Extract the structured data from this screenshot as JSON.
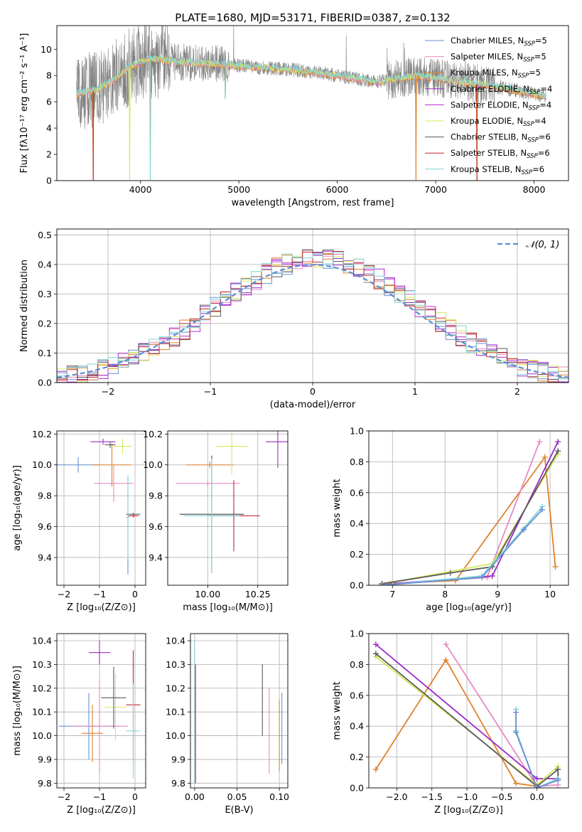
{
  "colors": {
    "chabrier_miles": "#6a8fd4",
    "salpeter_miles": "#e78ac3",
    "kroupa_miles": "#e0822a",
    "chabrier_elodie": "#9b2dc4",
    "salpeter_elodie": "#b02ad0",
    "kroupa_elodie": "#d8e85a",
    "chabrier_stelib": "#5a5a5a",
    "salpeter_stelib": "#c2262e",
    "kroupa_stelib": "#7fd6d6",
    "normal": "#5b8dd9",
    "spectrum": "#808080"
  },
  "chart_data": [
    {
      "id": "spectrum",
      "type": "line",
      "title": "PLATE=1680, MJD=53171, FIBERID=0387, z=0.132",
      "xlabel": "wavelength [Angstrom, rest frame]",
      "ylabel": "Flux [fλ10⁻¹⁷ erg cm⁻² s⁻¹ A⁻¹]",
      "xlim": [
        3150,
        8350
      ],
      "ylim": [
        0,
        11.8
      ],
      "xticks": [
        4000,
        5000,
        6000,
        7000,
        8000
      ],
      "yticks": [
        0,
        2,
        4,
        6,
        8,
        10
      ],
      "legend_position": "top-right",
      "legend": [
        {
          "label": "Chabrier MILES, N",
          "sub": "SSP",
          "suffix": "=5",
          "color_key": "chabrier_miles"
        },
        {
          "label": "Salpeter MILES, N",
          "sub": "SSP",
          "suffix": "=5",
          "color_key": "salpeter_miles"
        },
        {
          "label": "Kroupa MILES, N",
          "sub": "SSP",
          "suffix": "=5",
          "color_key": "kroupa_miles"
        },
        {
          "label": "Chabrier ELODIE, N",
          "sub": "SSP",
          "suffix": "=4",
          "color_key": "chabrier_elodie"
        },
        {
          "label": "Salpeter ELODIE, N",
          "sub": "SSP",
          "suffix": "=4",
          "color_key": "salpeter_elodie"
        },
        {
          "label": "Kroupa ELODIE, N",
          "sub": "SSP",
          "suffix": "=4",
          "color_key": "kroupa_elodie"
        },
        {
          "label": "Chabrier STELIB, N",
          "sub": "SSP",
          "suffix": "=6",
          "color_key": "chabrier_stelib"
        },
        {
          "label": "Salpeter STELIB, N",
          "sub": "SSP",
          "suffix": "=6",
          "color_key": "salpeter_stelib"
        },
        {
          "label": "Kroupa STELIB, N",
          "sub": "SSP",
          "suffix": "=6",
          "color_key": "kroupa_stelib"
        }
      ],
      "data_range": [
        3350,
        8120
      ],
      "continuum": [
        [
          3350,
          6.6
        ],
        [
          3550,
          6.9
        ],
        [
          3750,
          7.8
        ],
        [
          3900,
          8.7
        ],
        [
          4100,
          9.3
        ],
        [
          4400,
          9.0
        ],
        [
          4800,
          8.9
        ],
        [
          5200,
          8.6
        ],
        [
          5600,
          8.4
        ],
        [
          6000,
          8.0
        ],
        [
          6400,
          7.5
        ],
        [
          6800,
          8.0
        ],
        [
          7100,
          7.7
        ],
        [
          7500,
          7.3
        ],
        [
          8000,
          6.6
        ],
        [
          8120,
          6.4
        ]
      ],
      "model_dips": [
        [
          3520,
          0
        ],
        [
          3890,
          0
        ],
        [
          4100,
          0
        ],
        [
          4860,
          6.2
        ],
        [
          6800,
          0
        ],
        [
          7420,
          0
        ]
      ]
    },
    {
      "id": "residuals",
      "type": "line",
      "xlabel": "(data-model)/error",
      "ylabel": "Normed distribution",
      "xlim": [
        -2.5,
        2.5
      ],
      "ylim": [
        0,
        0.52
      ],
      "xticks": [
        -2,
        -1,
        0,
        1,
        2
      ],
      "yticks": [
        0.0,
        0.1,
        0.2,
        0.3,
        0.4,
        0.5
      ],
      "legend_position": "top-right",
      "normal_label": "𝒩(0, 1)",
      "bin_width": 0.1
    },
    {
      "id": "age_vs_Z",
      "type": "scatter",
      "xlabel": "Z [log₁₀(Z/Z⊙)]",
      "ylabel": "age  [log₁₀(age/yr)]",
      "xlim": [
        -2.2,
        0.3
      ],
      "ylim": [
        9.22,
        10.22
      ],
      "xticks": [
        -2,
        -1,
        0
      ],
      "yticks": [
        9.4,
        9.6,
        9.8,
        10.0,
        10.2
      ],
      "points": [
        {
          "x": -1.6,
          "y": 10.0,
          "xerr": 0.6,
          "yerr": 0.05,
          "color_key": "chabrier_miles"
        },
        {
          "x": -0.2,
          "y": 9.61,
          "xerr": 0.01,
          "yerr": 0.32,
          "color_key": "chabrier_miles"
        },
        {
          "x": -0.6,
          "y": 9.88,
          "xerr": 0.55,
          "yerr": 0.12,
          "color_key": "salpeter_miles"
        },
        {
          "x": -0.65,
          "y": 10.0,
          "xerr": 0.55,
          "yerr": 0.14,
          "color_key": "kroupa_miles"
        },
        {
          "x": -0.9,
          "y": 10.15,
          "xerr": 0.35,
          "yerr": 0.02,
          "color_key": "chabrier_elodie"
        },
        {
          "x": -0.35,
          "y": 10.12,
          "xerr": 0.25,
          "yerr": 0.05,
          "color_key": "kroupa_elodie"
        },
        {
          "x": -0.05,
          "y": 9.68,
          "xerr": 0.2,
          "yerr": 0.01,
          "color_key": "chabrier_stelib"
        },
        {
          "x": -0.7,
          "y": 10.13,
          "xerr": 0.15,
          "yerr": 0.02,
          "color_key": "chabrier_stelib"
        },
        {
          "x": -0.05,
          "y": 9.67,
          "xerr": 0.15,
          "yerr": 0.01,
          "color_key": "salpeter_stelib"
        },
        {
          "x": -0.2,
          "y": 9.66,
          "xerr": 0.05,
          "yerr": 0.27,
          "color_key": "kroupa_stelib"
        }
      ]
    },
    {
      "id": "age_vs_mass",
      "type": "scatter",
      "xlabel": "mass [log₁₀(M/M⊙)]",
      "ylabel": "",
      "xlim": [
        9.8,
        10.4
      ],
      "ylim": [
        9.22,
        10.22
      ],
      "xticks": [
        10.0,
        10.25
      ],
      "yticks": [
        9.4,
        9.6,
        9.8,
        10.0,
        10.2
      ],
      "points": [
        {
          "x": 10.02,
          "y": 9.68,
          "xerr": 0.16,
          "yerr": 0.38,
          "color_key": "chabrier_miles"
        },
        {
          "x": 10.0,
          "y": 9.88,
          "xerr": 0.16,
          "yerr": 0.02,
          "color_key": "salpeter_miles"
        },
        {
          "x": 10.01,
          "y": 10.0,
          "xerr": 0.12,
          "yerr": 0.02,
          "color_key": "kroupa_miles"
        },
        {
          "x": 10.35,
          "y": 10.15,
          "xerr": 0.06,
          "yerr": 0.17,
          "color_key": "chabrier_elodie"
        },
        {
          "x": 10.12,
          "y": 10.12,
          "xerr": 0.08,
          "yerr": 0.18,
          "color_key": "kroupa_elodie"
        },
        {
          "x": 10.02,
          "y": 9.68,
          "xerr": 0.16,
          "yerr": 0.38,
          "color_key": "chabrier_stelib"
        },
        {
          "x": 10.13,
          "y": 9.67,
          "xerr": 0.13,
          "yerr": 0.23,
          "color_key": "salpeter_stelib"
        },
        {
          "x": 10.02,
          "y": 9.67,
          "xerr": 0.14,
          "yerr": 0.37,
          "color_key": "kroupa_stelib"
        }
      ]
    },
    {
      "id": "massweight_vs_age",
      "type": "line",
      "xlabel": "age  [log₁₀(age/yr)]",
      "ylabel": "mass weight",
      "xlim": [
        6.55,
        10.35
      ],
      "ylim": [
        0.0,
        1.0
      ],
      "xticks": [
        7,
        8,
        9,
        10
      ],
      "yticks": [
        0.0,
        0.2,
        0.4,
        0.6,
        0.8,
        1.0
      ],
      "series": [
        {
          "color_key": "kroupa_miles",
          "x": [
            6.8,
            8.2,
            9.9,
            10.1
          ],
          "y": [
            0.01,
            0.03,
            0.83,
            0.12
          ]
        },
        {
          "color_key": "salpeter_miles",
          "x": [
            7.0,
            8.8,
            9.8
          ],
          "y": [
            0.01,
            0.05,
            0.93
          ]
        },
        {
          "color_key": "chabrier_elodie",
          "x": [
            7.0,
            8.9,
            10.15
          ],
          "y": [
            0.01,
            0.06,
            0.93
          ]
        },
        {
          "color_key": "kroupa_elodie",
          "x": [
            7.0,
            8.9,
            10.15
          ],
          "y": [
            0.02,
            0.14,
            0.85
          ]
        },
        {
          "color_key": "chabrier_stelib",
          "x": [
            6.8,
            8.1,
            8.9,
            10.15
          ],
          "y": [
            0.01,
            0.08,
            0.12,
            0.87
          ]
        },
        {
          "color_key": "kroupa_stelib",
          "x": [
            6.8,
            8.7,
            9.5,
            9.85
          ],
          "y": [
            0.0,
            0.06,
            0.37,
            0.51
          ]
        },
        {
          "color_key": "chabrier_miles",
          "x": [
            6.8,
            8.7,
            9.5,
            9.85
          ],
          "y": [
            0.0,
            0.05,
            0.36,
            0.49
          ]
        }
      ]
    },
    {
      "id": "mass_vs_Z",
      "type": "scatter",
      "xlabel": "Z [log₁₀(Z/Z⊙)]",
      "ylabel": "mass [log₁₀(M/M⊙)]",
      "xlim": [
        -2.2,
        0.3
      ],
      "ylim": [
        9.78,
        10.43
      ],
      "xticks": [
        -2,
        -1,
        0
      ],
      "yticks": [
        9.8,
        9.9,
        10.0,
        10.1,
        10.2,
        10.3,
        10.4
      ],
      "points": [
        {
          "x": -1.3,
          "y": 10.04,
          "xerr": 0.85,
          "yerr": 0.14,
          "color_key": "chabrier_miles"
        },
        {
          "x": -1.0,
          "y": 10.04,
          "xerr": 0.8,
          "yerr": 0.2,
          "color_key": "salpeter_miles"
        },
        {
          "x": -1.2,
          "y": 10.01,
          "xerr": 0.3,
          "yerr": 0.12,
          "color_key": "kroupa_miles"
        },
        {
          "x": -1.0,
          "y": 10.35,
          "xerr": 0.3,
          "yerr": 0.05,
          "color_key": "chabrier_elodie"
        },
        {
          "x": -0.55,
          "y": 10.12,
          "xerr": 0.3,
          "yerr": 0.14,
          "color_key": "kroupa_elodie"
        },
        {
          "x": -0.6,
          "y": 10.16,
          "xerr": 0.35,
          "yerr": 0.13,
          "color_key": "chabrier_stelib"
        },
        {
          "x": -0.05,
          "y": 10.13,
          "xerr": 0.2,
          "yerr": 0.23,
          "color_key": "salpeter_stelib"
        },
        {
          "x": -0.05,
          "y": 10.02,
          "xerr": 0.2,
          "yerr": 0.2,
          "color_key": "kroupa_stelib"
        }
      ]
    },
    {
      "id": "mass_vs_ebv",
      "type": "scatter",
      "xlabel": "E(B-V)",
      "ylabel": "",
      "xlim": [
        -0.005,
        0.11
      ],
      "ylim": [
        9.78,
        10.43
      ],
      "xticks": [
        0.0,
        0.05,
        0.1
      ],
      "yticks": [
        9.8,
        9.9,
        10.0,
        10.1,
        10.2,
        10.3,
        10.4
      ],
      "points": [
        {
          "x": 0.0,
          "y": 10.1,
          "xerr": 0,
          "yerr": 0.3,
          "color_key": "chabrier_elodie"
        },
        {
          "x": 0.0,
          "y": 10.1,
          "xerr": 0,
          "yerr": 0.3,
          "color_key": "kroupa_stelib"
        },
        {
          "x": 0.001,
          "y": 10.05,
          "xerr": 0,
          "yerr": 0.25,
          "color_key": "salpeter_stelib"
        },
        {
          "x": 0.08,
          "y": 10.15,
          "xerr": 0,
          "yerr": 0.15,
          "color_key": "chabrier_stelib"
        },
        {
          "x": 0.088,
          "y": 10.02,
          "xerr": 0,
          "yerr": 0.18,
          "color_key": "salpeter_miles"
        },
        {
          "x": 0.1,
          "y": 10.0,
          "xerr": 0,
          "yerr": 0.15,
          "color_key": "kroupa_miles"
        },
        {
          "x": 0.103,
          "y": 10.03,
          "xerr": 0,
          "yerr": 0.15,
          "color_key": "chabrier_miles"
        }
      ]
    },
    {
      "id": "massweight_vs_Z",
      "type": "line",
      "xlabel": "Z [log₁₀(Z/Z⊙)]",
      "ylabel": "mass weight",
      "xlim": [
        -2.4,
        0.45
      ],
      "ylim": [
        0.0,
        1.0
      ],
      "xticks": [
        -2.0,
        -1.5,
        -1.0,
        -0.5,
        0.0
      ],
      "yticks": [
        0.0,
        0.2,
        0.4,
        0.6,
        0.8,
        1.0
      ],
      "series": [
        {
          "color_key": "kroupa_miles",
          "x": [
            -2.3,
            -1.3,
            -0.3,
            0.0
          ],
          "y": [
            0.12,
            0.83,
            0.03,
            0.01
          ]
        },
        {
          "color_key": "salpeter_miles",
          "x": [
            -1.3,
            0.0,
            0.3
          ],
          "y": [
            0.93,
            0.01,
            0.02
          ]
        },
        {
          "color_key": "chabrier_elodie",
          "x": [
            -2.3,
            0.0,
            0.3
          ],
          "y": [
            0.93,
            0.06,
            0.06
          ]
        },
        {
          "color_key": "kroupa_elodie",
          "x": [
            -2.3,
            0.0,
            0.3
          ],
          "y": [
            0.85,
            0.02,
            0.14
          ]
        },
        {
          "color_key": "chabrier_stelib",
          "x": [
            -2.3,
            0.0,
            0.3,
            0.3
          ],
          "y": [
            0.87,
            0.01,
            0.12,
            0.05
          ]
        },
        {
          "color_key": "kroupa_stelib",
          "x": [
            -0.3,
            -0.3,
            0.0,
            0.3
          ],
          "y": [
            0.51,
            0.37,
            0.0,
            0.06
          ]
        },
        {
          "color_key": "chabrier_miles",
          "x": [
            -0.3,
            -0.3,
            0.0,
            0.3
          ],
          "y": [
            0.49,
            0.36,
            0.0,
            0.05
          ]
        }
      ]
    }
  ]
}
